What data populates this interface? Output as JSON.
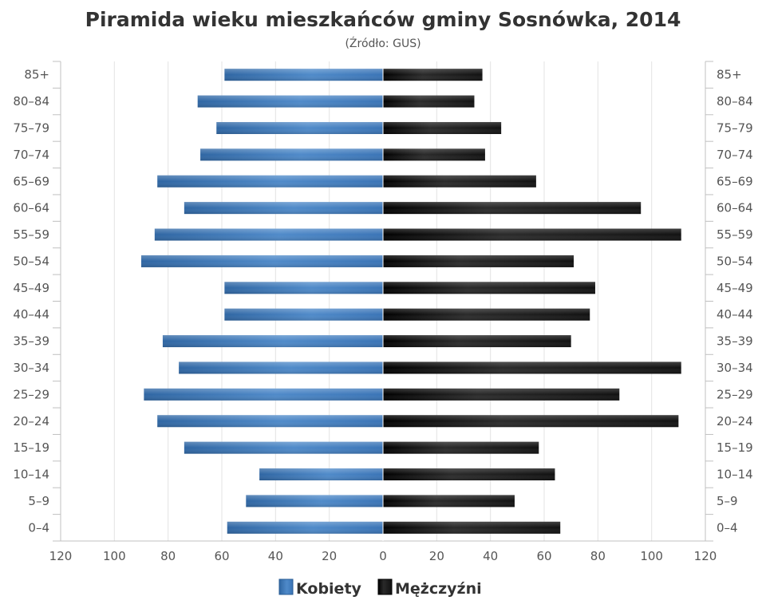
{
  "chart_data": {
    "type": "bar",
    "orientation": "horizontal",
    "title": "Piramida wieku mieszkańców gminy Sosnówka, 2014",
    "subtitle": "(Źródło: GUS)",
    "categories": [
      "85+",
      "80–84",
      "75–79",
      "70–74",
      "65–69",
      "60–64",
      "55–59",
      "50–54",
      "45–49",
      "40–44",
      "35–39",
      "30–34",
      "25–29",
      "20–24",
      "15–19",
      "10–14",
      "5–9",
      "0–4"
    ],
    "series": [
      {
        "name": "Kobiety",
        "color": "#4f8ac9",
        "side": "left",
        "values": [
          59,
          69,
          62,
          68,
          84,
          74,
          85,
          90,
          59,
          59,
          82,
          76,
          89,
          84,
          74,
          46,
          51,
          58
        ]
      },
      {
        "name": "Mężczyźni",
        "color": "#1a1a1a",
        "side": "right",
        "values": [
          37,
          34,
          44,
          38,
          57,
          96,
          111,
          71,
          79,
          77,
          70,
          111,
          88,
          110,
          58,
          64,
          49,
          66
        ]
      }
    ],
    "xlim": [
      -120,
      120
    ],
    "xticks": [
      -120,
      -100,
      -80,
      -60,
      -40,
      -20,
      0,
      20,
      40,
      60,
      80,
      100,
      120
    ],
    "xtick_labels": [
      "120",
      "100",
      "80",
      "60",
      "40",
      "20",
      "0",
      "20",
      "40",
      "60",
      "80",
      "100",
      "120"
    ],
    "grid": true,
    "legend_position": "bottom"
  }
}
